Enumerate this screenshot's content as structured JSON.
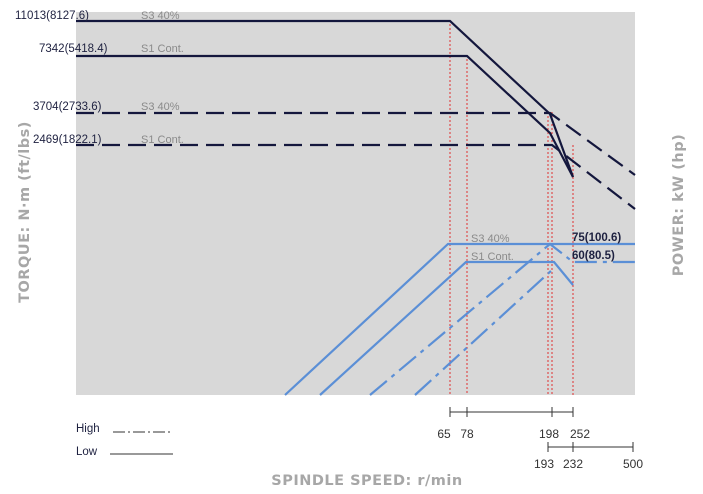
{
  "chart_data": {
    "type": "line",
    "title": "",
    "xlabel": "SPINDLE SPEED: r/min",
    "ylabel_left": "TORQUE: N·m (ft/lbs)",
    "ylabel_right": "POWER: kW (hp)",
    "torque_labels": [
      {
        "value": "11013",
        "paren": "(8127.6)",
        "mode": "S3 40%"
      },
      {
        "value": "7342",
        "paren": "(5418.4)",
        "mode": "S1 Cont."
      },
      {
        "value": "3704",
        "paren": "(2733.6)",
        "mode": "S3 40%"
      },
      {
        "value": "2469",
        "paren": "(1822.1)",
        "mode": "S1 Cont."
      }
    ],
    "power_labels": [
      {
        "text": "75(100.6)"
      },
      {
        "text": "60(80.5)"
      }
    ],
    "power_mode_labels": [
      "S3 40%",
      "S1 Cont."
    ],
    "x_ticks_low": [
      "65",
      "78",
      "198",
      "252"
    ],
    "x_ticks_high": [
      "193",
      "232",
      "500"
    ],
    "legend": {
      "high": "High",
      "low": "Low"
    },
    "colors": {
      "torque": "#14173d",
      "power": "#5b8fd6",
      "grid_bg": "#d8d8d8",
      "marker": "#e03030"
    }
  }
}
